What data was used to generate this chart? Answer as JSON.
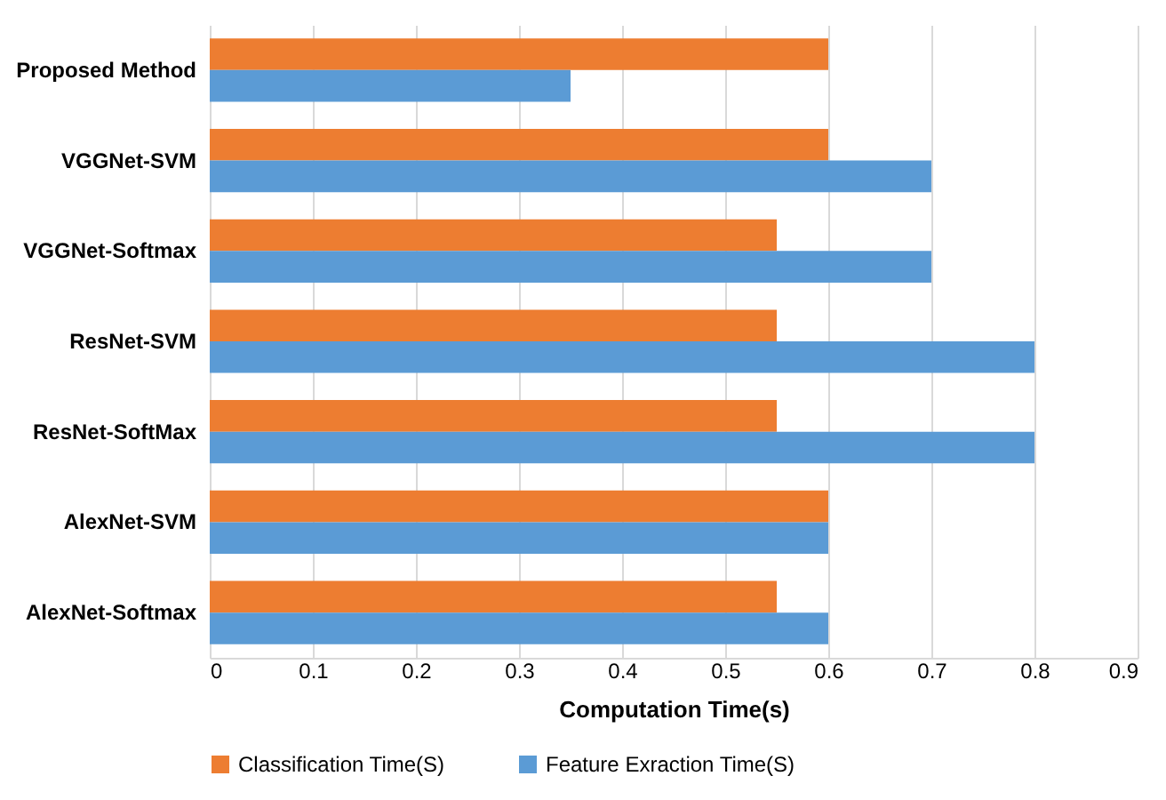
{
  "chart_data": {
    "type": "bar",
    "orientation": "horizontal",
    "xlabel": "Computation Time(s)",
    "categories": [
      "Proposed Method",
      "VGGNet-SVM",
      "VGGNet-Softmax",
      "ResNet-SVM",
      "ResNet-SoftMax",
      "AlexNet-SVM",
      "AlexNet-Softmax"
    ],
    "series": [
      {
        "name": "Classification Time(S)",
        "color": "#ed7d31",
        "values": [
          0.6,
          0.6,
          0.55,
          0.55,
          0.55,
          0.6,
          0.55
        ]
      },
      {
        "name": "Feature Exraction Time(S)",
        "color": "#5b9bd5",
        "values": [
          0.35,
          0.7,
          0.7,
          0.8,
          0.8,
          0.6,
          0.6
        ]
      }
    ],
    "xlim": [
      0,
      0.9
    ],
    "xticks": [
      0,
      0.1,
      0.2,
      0.3,
      0.4,
      0.5,
      0.6,
      0.7,
      0.8,
      0.9
    ],
    "grid": "x",
    "legend": "bottom"
  }
}
